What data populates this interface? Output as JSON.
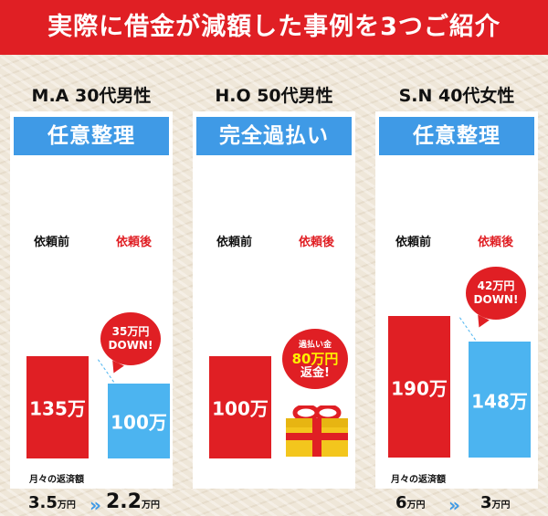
{
  "title": "実際に借金が減額した事例を3つご紹介",
  "cases": [
    {
      "person": "M.A 30代男性",
      "type": "任意整理",
      "before_label": "依頼前",
      "after_label": "依頼後",
      "before_amount": "135万",
      "after_amount": "100万",
      "bubble_line1": "35万円",
      "bubble_line2": "DOWN!",
      "monthly_label": "月々の返済額",
      "monthly_before_num": "3.5",
      "monthly_before_unit": "万円",
      "monthly_after_num": "2.2",
      "monthly_after_unit": "万円"
    },
    {
      "person": "H.O 50代男性",
      "type": "完全過払い",
      "before_label": "依頼前",
      "after_label": "依頼後",
      "before_amount": "100万",
      "bubble_line1": "過払い金",
      "bubble_line2": "80万円",
      "bubble_line3": "返金!"
    },
    {
      "person": "S.N 40代女性",
      "type": "任意整理",
      "before_label": "依頼前",
      "after_label": "依頼後",
      "before_amount": "190万",
      "after_amount": "148万",
      "bubble_line1": "42万円",
      "bubble_line2": "DOWN!",
      "monthly_label": "月々の返済額",
      "monthly_before_num": "6",
      "monthly_before_unit": "万円",
      "monthly_after_num": "3",
      "monthly_after_unit": "万円"
    }
  ],
  "icons": {
    "arrow": "double-chevron-right-icon",
    "gift": "gift-box-icon"
  },
  "colors": {
    "red": "#e01f24",
    "blue": "#3f9ae6",
    "light_blue": "#4cb4f0",
    "gold": "#f3c61d"
  }
}
